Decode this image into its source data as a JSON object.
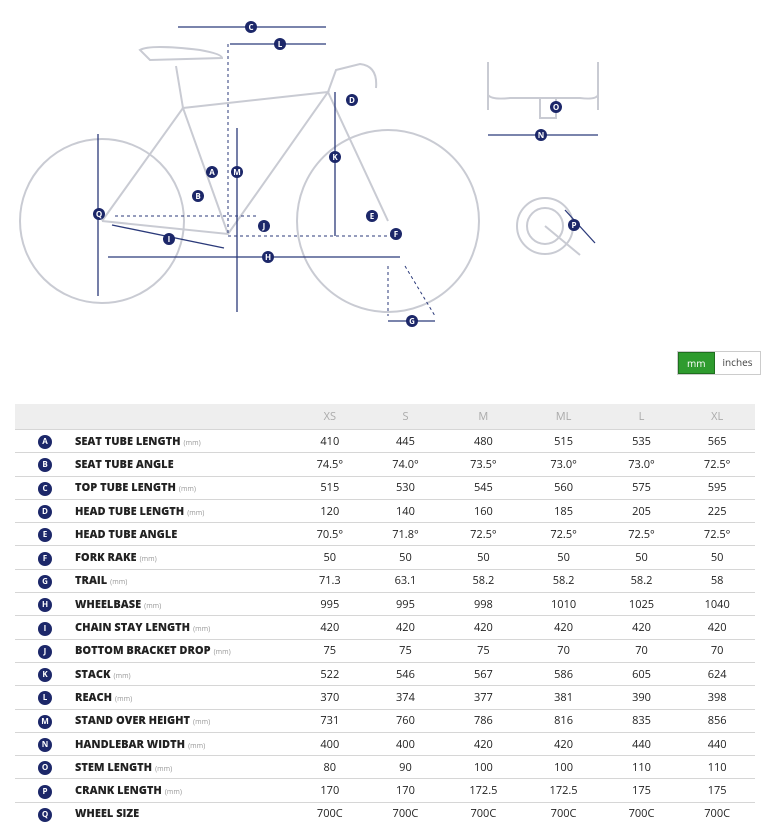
{
  "unit_toggle": {
    "options": [
      "mm",
      "inches"
    ],
    "active": 0
  },
  "table": {
    "columns": [
      "XS",
      "S",
      "M",
      "ML",
      "L",
      "XL"
    ],
    "rows": [
      {
        "letter": "A",
        "name": "SEAT TUBE LENGTH",
        "unit": "(mm)",
        "values": [
          "410",
          "445",
          "480",
          "515",
          "535",
          "565"
        ]
      },
      {
        "letter": "B",
        "name": "SEAT TUBE ANGLE",
        "values": [
          "74.5°",
          "74.0°",
          "73.5°",
          "73.0°",
          "73.0°",
          "72.5°"
        ]
      },
      {
        "letter": "C",
        "name": "TOP TUBE LENGTH",
        "unit": "(mm)",
        "values": [
          "515",
          "530",
          "545",
          "560",
          "575",
          "595"
        ]
      },
      {
        "letter": "D",
        "name": "HEAD TUBE LENGTH",
        "unit": "(mm)",
        "values": [
          "120",
          "140",
          "160",
          "185",
          "205",
          "225"
        ]
      },
      {
        "letter": "E",
        "name": "HEAD TUBE ANGLE",
        "values": [
          "70.5°",
          "71.8°",
          "72.5°",
          "72.5°",
          "72.5°",
          "72.5°"
        ]
      },
      {
        "letter": "F",
        "name": "FORK RAKE",
        "unit": "(mm)",
        "values": [
          "50",
          "50",
          "50",
          "50",
          "50",
          "50"
        ]
      },
      {
        "letter": "G",
        "name": "TRAIL",
        "unit": "(mm)",
        "values": [
          "71.3",
          "63.1",
          "58.2",
          "58.2",
          "58.2",
          "58"
        ]
      },
      {
        "letter": "H",
        "name": "WHEELBASE",
        "unit": "(mm)",
        "values": [
          "995",
          "995",
          "998",
          "1010",
          "1025",
          "1040"
        ]
      },
      {
        "letter": "I",
        "name": "CHAIN STAY LENGTH",
        "unit": "(mm)",
        "values": [
          "420",
          "420",
          "420",
          "420",
          "420",
          "420"
        ]
      },
      {
        "letter": "J",
        "name": "BOTTOM BRACKET DROP",
        "unit": "(mm)",
        "values": [
          "75",
          "75",
          "75",
          "70",
          "70",
          "70"
        ]
      },
      {
        "letter": "K",
        "name": "STACK",
        "unit": "(mm)",
        "values": [
          "522",
          "546",
          "567",
          "586",
          "605",
          "624"
        ]
      },
      {
        "letter": "L",
        "name": "REACH",
        "unit": "(mm)",
        "values": [
          "370",
          "374",
          "377",
          "381",
          "390",
          "398"
        ]
      },
      {
        "letter": "M",
        "name": "STAND OVER HEIGHT",
        "unit": "(mm)",
        "values": [
          "731",
          "760",
          "786",
          "816",
          "835",
          "856"
        ]
      },
      {
        "letter": "N",
        "name": "HANDLEBAR WIDTH",
        "unit": "(mm)",
        "values": [
          "400",
          "400",
          "420",
          "420",
          "440",
          "440"
        ]
      },
      {
        "letter": "O",
        "name": "STEM LENGTH",
        "unit": "(mm)",
        "values": [
          "80",
          "90",
          "100",
          "100",
          "110",
          "110"
        ]
      },
      {
        "letter": "P",
        "name": "CRANK LENGTH",
        "unit": "(mm)",
        "values": [
          "170",
          "170",
          "172.5",
          "172.5",
          "175",
          "175"
        ]
      },
      {
        "letter": "Q",
        "name": "WHEEL SIZE",
        "values": [
          "700C",
          "700C",
          "700C",
          "700C",
          "700C",
          "700C"
        ]
      }
    ]
  }
}
